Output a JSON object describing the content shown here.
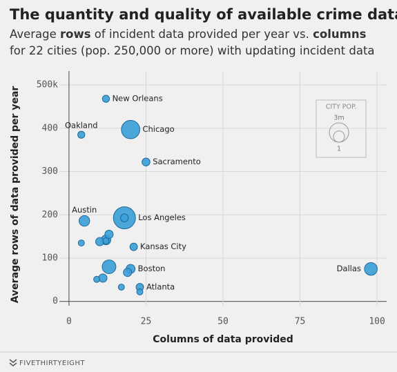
{
  "chart_data": {
    "type": "bubble",
    "title": "The quantity and quality of available crime data",
    "subtitle": [
      "Average ",
      "rows",
      " of incident data provided per year vs. ",
      "columns",
      "for 22 cities (pop. 250,000 or more) with updating incident data"
    ],
    "subtitle_bold": [
      1,
      3
    ],
    "xlabel": "Columns of data provided",
    "ylabel": "Average rows of data provided per year",
    "xlim": [
      -2,
      102
    ],
    "xticks": [
      0,
      25,
      50,
      75,
      100
    ],
    "ylim": [
      -10,
      540
    ],
    "yticks": [
      0,
      100,
      200,
      300,
      400,
      {
        "value": 500,
        "label": "500k"
      }
    ],
    "grid": true,
    "color": "#3d9fd8",
    "edge": "#1e6898",
    "series": [
      {
        "labels": [
          "New Orleans",
          "Oakland",
          "Chicago",
          "Sacramento",
          "Austin",
          "Los Angeles",
          "Kansas City",
          "Boston",
          "Atlanta",
          "Dallas",
          null,
          null,
          null,
          null,
          null,
          null,
          null,
          null,
          null,
          null,
          null,
          null
        ],
        "x": [
          12,
          4,
          20,
          25,
          5,
          18,
          21,
          20,
          23,
          98,
          18,
          4,
          10,
          13,
          12,
          13,
          19,
          11,
          9,
          17,
          23,
          12
        ],
        "values": [
          468,
          385,
          397,
          322,
          186,
          193,
          126,
          75,
          33,
          75,
          193,
          135,
          138,
          155,
          142,
          80,
          67,
          54,
          51,
          33,
          22,
          140
        ],
        "sizes": [
          0.4,
          0.4,
          2.7,
          0.5,
          0.9,
          3.9,
          0.45,
          0.65,
          0.45,
          1.3,
          0.5,
          0.3,
          0.55,
          0.55,
          0.75,
          1.5,
          0.55,
          0.55,
          0.3,
          0.3,
          0.3,
          0.3
        ]
      }
    ],
    "legend": {
      "title": "CITY POP.",
      "sizes": [
        {
          "value": 3,
          "label": "3m"
        },
        1
      ]
    },
    "source": "FIVETHIRTYEIGHT"
  }
}
